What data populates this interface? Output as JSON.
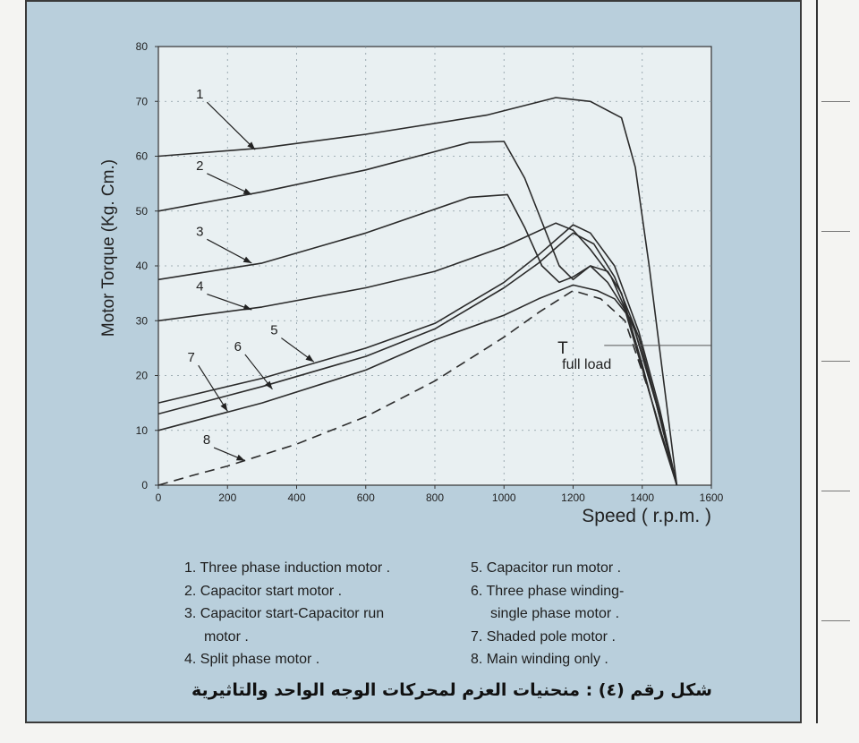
{
  "caption": "شكل رقم (٤) : منحنيات العزم لمحركات الوجه الواحد والتاثيرية",
  "legend": {
    "left": [
      "1. Three phase induction motor .",
      "2. Capacitor start motor .",
      "3. Capacitor start-Capacitor run",
      "motor .",
      "4. Split phase motor ."
    ],
    "right": [
      "5. Capacitor run motor .",
      "6. Three phase winding-",
      "single phase motor .",
      "7. Shaded pole motor .",
      "8. Main winding only ."
    ]
  },
  "chart_data": {
    "type": "line",
    "xlabel": "Speed  ( r.p.m. )",
    "ylabel": "Motor Torque (Kg. Cm.)",
    "xlim": [
      0,
      1600
    ],
    "ylim": [
      0,
      80
    ],
    "xticks": [
      0,
      200,
      400,
      600,
      800,
      1000,
      1200,
      1400,
      1600
    ],
    "yticks": [
      0,
      10,
      20,
      30,
      40,
      50,
      60,
      70,
      80
    ],
    "grid": true,
    "annotation": {
      "text_main": "T",
      "text_sub": "full load",
      "y": 25.5
    },
    "series": [
      {
        "label": "1",
        "dash": false,
        "points": [
          [
            0,
            60
          ],
          [
            300,
            61.5
          ],
          [
            600,
            64
          ],
          [
            950,
            67.5
          ],
          [
            1150,
            70.7
          ],
          [
            1250,
            70
          ],
          [
            1340,
            67
          ],
          [
            1380,
            58
          ],
          [
            1420,
            40
          ],
          [
            1460,
            20
          ],
          [
            1500,
            0
          ]
        ]
      },
      {
        "label": "2",
        "dash": false,
        "points": [
          [
            0,
            50
          ],
          [
            300,
            53.5
          ],
          [
            600,
            57.5
          ],
          [
            900,
            62.5
          ],
          [
            1000,
            62.7
          ],
          [
            1060,
            56
          ],
          [
            1110,
            48
          ],
          [
            1160,
            40
          ],
          [
            1200,
            37.5
          ],
          [
            1250,
            40
          ],
          [
            1300,
            39
          ],
          [
            1340,
            35
          ],
          [
            1400,
            22
          ],
          [
            1450,
            10
          ],
          [
            1500,
            0
          ]
        ]
      },
      {
        "label": "3",
        "dash": false,
        "points": [
          [
            0,
            37.5
          ],
          [
            300,
            40.5
          ],
          [
            600,
            46
          ],
          [
            900,
            52.5
          ],
          [
            1010,
            53
          ],
          [
            1060,
            47
          ],
          [
            1110,
            40
          ],
          [
            1160,
            37
          ],
          [
            1200,
            38
          ],
          [
            1250,
            40
          ],
          [
            1300,
            37
          ],
          [
            1350,
            32
          ],
          [
            1420,
            17
          ],
          [
            1500,
            0
          ]
        ]
      },
      {
        "label": "4",
        "dash": false,
        "points": [
          [
            0,
            30
          ],
          [
            300,
            32.5
          ],
          [
            600,
            36
          ],
          [
            800,
            39
          ],
          [
            1000,
            43.5
          ],
          [
            1150,
            47.8
          ],
          [
            1200,
            46.5
          ],
          [
            1250,
            43
          ],
          [
            1310,
            38
          ],
          [
            1380,
            28
          ],
          [
            1440,
            15
          ],
          [
            1500,
            0
          ]
        ]
      },
      {
        "label": "5",
        "dash": false,
        "points": [
          [
            0,
            15
          ],
          [
            300,
            19.5
          ],
          [
            600,
            25
          ],
          [
            800,
            29.5
          ],
          [
            1000,
            37
          ],
          [
            1100,
            42
          ],
          [
            1200,
            47.5
          ],
          [
            1250,
            46
          ],
          [
            1320,
            40
          ],
          [
            1390,
            28
          ],
          [
            1450,
            14
          ],
          [
            1500,
            0
          ]
        ]
      },
      {
        "label": "6",
        "dash": false,
        "points": [
          [
            0,
            13
          ],
          [
            300,
            18
          ],
          [
            600,
            23.5
          ],
          [
            800,
            28.5
          ],
          [
            1000,
            36
          ],
          [
            1100,
            40.5
          ],
          [
            1200,
            46
          ],
          [
            1260,
            44
          ],
          [
            1320,
            38
          ],
          [
            1390,
            27
          ],
          [
            1450,
            13
          ],
          [
            1500,
            0
          ]
        ]
      },
      {
        "label": "7",
        "dash": false,
        "points": [
          [
            0,
            10
          ],
          [
            300,
            15
          ],
          [
            600,
            21
          ],
          [
            800,
            26.5
          ],
          [
            1000,
            31
          ],
          [
            1100,
            34
          ],
          [
            1200,
            36.5
          ],
          [
            1270,
            35.5
          ],
          [
            1320,
            34
          ],
          [
            1370,
            30
          ],
          [
            1440,
            15
          ],
          [
            1500,
            0
          ]
        ]
      },
      {
        "label": "8",
        "dash": true,
        "points": [
          [
            0,
            0
          ],
          [
            100,
            1.8
          ],
          [
            200,
            3.5
          ],
          [
            400,
            7.5
          ],
          [
            600,
            12.5
          ],
          [
            800,
            19
          ],
          [
            1000,
            27
          ],
          [
            1100,
            31.5
          ],
          [
            1200,
            35.5
          ],
          [
            1280,
            34
          ],
          [
            1350,
            30
          ],
          [
            1420,
            17
          ],
          [
            1500,
            0
          ]
        ]
      }
    ],
    "pointers": [
      {
        "label": "1",
        "label_xy": [
          120,
          70.5
        ],
        "tip_xy": [
          280,
          61.2
        ]
      },
      {
        "label": "2",
        "label_xy": [
          120,
          57.5
        ],
        "tip_xy": [
          270,
          53
        ]
      },
      {
        "label": "3",
        "label_xy": [
          120,
          45.5
        ],
        "tip_xy": [
          270,
          40.5
        ]
      },
      {
        "label": "4",
        "label_xy": [
          120,
          35.5
        ],
        "tip_xy": [
          270,
          32
        ]
      },
      {
        "label": "5",
        "label_xy": [
          335,
          27.5
        ],
        "tip_xy": [
          450,
          22.5
        ]
      },
      {
        "label": "6",
        "label_xy": [
          230,
          24.5
        ],
        "tip_xy": [
          330,
          17.5
        ]
      },
      {
        "label": "7",
        "label_xy": [
          95,
          22.5
        ],
        "tip_xy": [
          200,
          13.5
        ]
      },
      {
        "label": "8",
        "label_xy": [
          140,
          7.5
        ],
        "tip_xy": [
          250,
          4.5
        ]
      }
    ]
  }
}
